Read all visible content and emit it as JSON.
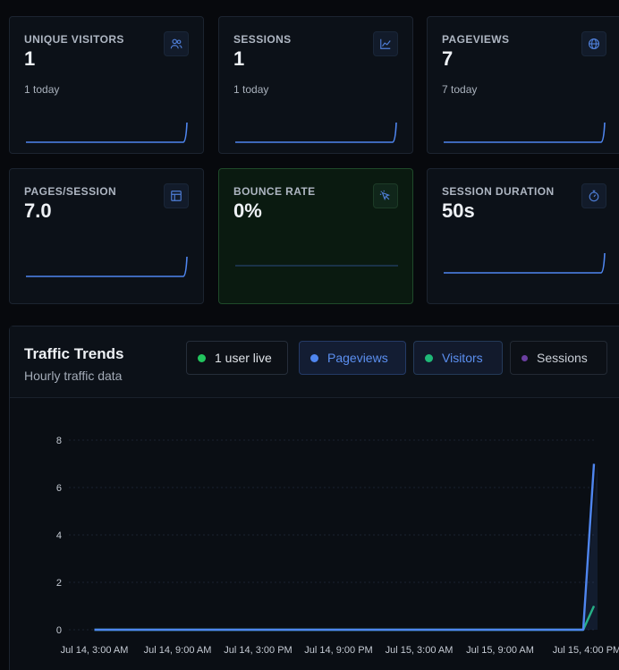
{
  "cards": [
    {
      "label": "UNIQUE VISITORS",
      "value": "1",
      "sub": "1 today",
      "icon": "users-icon"
    },
    {
      "label": "SESSIONS",
      "value": "1",
      "sub": "1 today",
      "icon": "line-chart-icon"
    },
    {
      "label": "PAGEVIEWS",
      "value": "7",
      "sub": "7 today",
      "icon": "globe-icon"
    },
    {
      "label": "PAGES/SESSION",
      "value": "7.0",
      "sub": "",
      "icon": "layout-icon"
    },
    {
      "label": "BOUNCE RATE",
      "value": "0%",
      "sub": "",
      "icon": "cursor-click-icon"
    },
    {
      "label": "SESSION DURATION",
      "value": "50s",
      "sub": "",
      "icon": "stopwatch-icon"
    }
  ],
  "colors": {
    "accent_blue": "#4f86f0",
    "accent_green": "#1fb877",
    "session_purple": "#6b3fa0",
    "live_green": "#22c55e"
  },
  "trends": {
    "title": "Traffic Trends",
    "subtitle": "Hourly traffic data",
    "live_label": "1 user live",
    "legend": {
      "pageviews": "Pageviews",
      "visitors": "Visitors",
      "sessions": "Sessions"
    }
  },
  "chart_data": {
    "type": "line",
    "x_ticks": [
      "Jul 14, 3:00 AM",
      "Jul 14, 9:00 AM",
      "Jul 14, 3:00 PM",
      "Jul 14, 9:00 PM",
      "Jul 15, 3:00 AM",
      "Jul 15, 9:00 AM",
      "Jul 15, 4:00 PM"
    ],
    "y_ticks": [
      0,
      2,
      4,
      6,
      8
    ],
    "ylim": [
      0,
      8
    ],
    "grid": true,
    "series": [
      {
        "name": "Pageviews",
        "color": "#4f86f0",
        "points": [
          [
            "Jul 14, 3:00 AM",
            0
          ],
          [
            "Jul 15, 3:00 PM",
            0
          ],
          [
            "Jul 15, 4:00 PM",
            7
          ]
        ]
      },
      {
        "name": "Visitors",
        "color": "#1fb877",
        "points": [
          [
            "Jul 14, 3:00 AM",
            0
          ],
          [
            "Jul 15, 3:00 PM",
            0
          ],
          [
            "Jul 15, 4:00 PM",
            1
          ]
        ]
      },
      {
        "name": "Sessions",
        "color": "#6b3fa0",
        "points": [
          [
            "Jul 14, 3:00 AM",
            0
          ],
          [
            "Jul 15, 3:00 PM",
            0
          ],
          [
            "Jul 15, 4:00 PM",
            1
          ]
        ]
      }
    ]
  }
}
